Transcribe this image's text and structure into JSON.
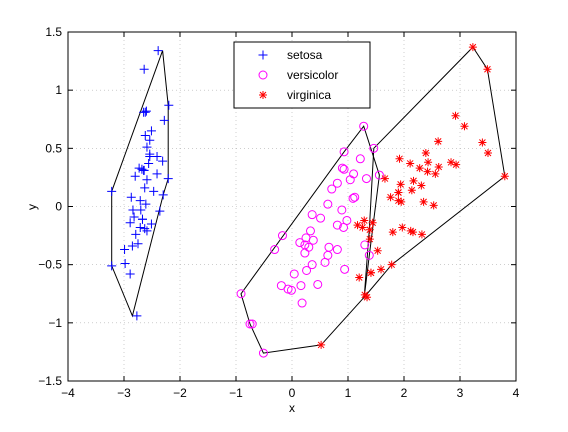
{
  "chart_data": {
    "type": "scatter",
    "title": "",
    "xlabel": "x",
    "ylabel": "y",
    "xlim": [
      -4,
      4
    ],
    "ylim": [
      -1.5,
      1.5
    ],
    "xticks": [
      -4,
      -3,
      -2,
      -1,
      0,
      1,
      2,
      3,
      4
    ],
    "yticks": [
      -1.5,
      -1,
      -0.5,
      0,
      0.5,
      1,
      1.5
    ],
    "xtick_labels": [
      "−4",
      "−3",
      "−2",
      "−1",
      "0",
      "1",
      "2",
      "3",
      "4"
    ],
    "ytick_labels": [
      "−1.5",
      "−1",
      "−0.5",
      "0",
      "0.5",
      "1",
      "1.5"
    ],
    "grid": true,
    "legend_position": "top-center",
    "series": [
      {
        "name": "setosa",
        "marker": "plus",
        "color": "#0000ff",
        "x": [
          -2.68,
          -2.71,
          -2.89,
          -2.75,
          -2.73,
          -2.28,
          -2.82,
          -2.63,
          -2.89,
          -2.67,
          -2.51,
          -2.61,
          -2.79,
          -3.22,
          -2.64,
          -2.39,
          -2.62,
          -2.65,
          -2.2,
          -2.59,
          -2.31,
          -2.54,
          -3.22,
          -2.3,
          -2.36,
          -2.51,
          -2.47,
          -2.56,
          -2.64,
          -2.63,
          -2.59,
          -2.41,
          -2.65,
          -2.6,
          -2.67,
          -2.87,
          -2.62,
          -2.8,
          -2.98,
          -2.59,
          -2.77,
          -2.85,
          -2.99,
          -2.41,
          -2.21,
          -2.71,
          -2.54,
          -2.84,
          -2.54,
          -2.7
        ],
        "y": [
          0.32,
          -0.18,
          -0.14,
          -0.32,
          0.33,
          0.74,
          -0.09,
          0.16,
          -0.58,
          -0.11,
          0.65,
          0.02,
          -0.24,
          -0.51,
          1.18,
          1.34,
          0.81,
          0.31,
          0.87,
          0.51,
          0.39,
          0.43,
          0.13,
          0.1,
          -0.04,
          -0.15,
          0.13,
          0.37,
          0.31,
          -0.19,
          -0.21,
          0.28,
          0.81,
          0.82,
          -0.11,
          0.08,
          0.61,
          0.26,
          -0.49,
          0.23,
          -0.94,
          -0.34,
          -0.37,
          0.43,
          0.24,
          0.05,
          0.57,
          -0.03,
          0.45,
          -0.03
        ]
      },
      {
        "name": "versicolor",
        "marker": "circle",
        "color": "#ff00ff",
        "x": [
          1.28,
          0.93,
          1.46,
          0.18,
          1.09,
          0.64,
          1.1,
          -0.75,
          1.04,
          -0.01,
          -0.51,
          0.51,
          0.26,
          0.98,
          -0.17,
          0.93,
          0.66,
          0.23,
          0.94,
          0.04,
          1.12,
          0.36,
          1.3,
          0.92,
          0.71,
          0.9,
          1.33,
          1.56,
          0.81,
          -0.31,
          -0.07,
          -0.19,
          0.14,
          1.38,
          0.59,
          0.81,
          1.22,
          0.81,
          0.25,
          0.16,
          0.46,
          0.89,
          0.23,
          -0.71,
          0.36,
          0.33,
          0.38,
          0.64,
          -0.91,
          0.3
        ],
        "y": [
          0.69,
          0.32,
          0.5,
          -0.83,
          0.07,
          -0.42,
          0.28,
          -1.01,
          0.23,
          -0.72,
          -1.26,
          -0.1,
          -0.55,
          -0.12,
          -0.25,
          0.47,
          -0.35,
          -0.33,
          -0.54,
          -0.58,
          0.08,
          -0.07,
          -0.33,
          -0.18,
          0.15,
          0.33,
          0.24,
          0.27,
          -0.16,
          -0.37,
          -0.71,
          -0.68,
          -0.31,
          -0.42,
          -0.48,
          0.2,
          0.41,
          -0.37,
          -0.27,
          -0.68,
          -0.67,
          -0.03,
          -0.4,
          -1.01,
          -0.5,
          -0.21,
          -0.29,
          0.02,
          -0.75,
          -0.35
        ]
      },
      {
        "name": "virginica",
        "marker": "star",
        "color": "#ff0000",
        "x": [
          2.53,
          1.41,
          2.62,
          1.97,
          2.35,
          3.4,
          0.52,
          2.93,
          2.32,
          2.92,
          1.66,
          1.8,
          2.17,
          1.34,
          1.59,
          1.9,
          1.95,
          3.49,
          3.8,
          1.3,
          2.43,
          1.2,
          3.5,
          1.39,
          2.28,
          2.61,
          1.26,
          1.29,
          2.12,
          2.39,
          2.84,
          3.23,
          2.16,
          1.44,
          1.78,
          3.08,
          2.14,
          1.9,
          1.17,
          2.11,
          2.31,
          1.92,
          1.41,
          2.56,
          2.42,
          1.94,
          1.53,
          1.76,
          1.9,
          1.39
        ],
        "y": [
          0.01,
          -0.57,
          0.34,
          -0.18,
          0.04,
          0.55,
          -1.19,
          0.36,
          -0.24,
          0.78,
          0.24,
          -0.22,
          0.22,
          -0.78,
          -0.54,
          0.12,
          0.04,
          1.18,
          0.26,
          -0.76,
          0.38,
          -0.61,
          0.46,
          -0.2,
          0.33,
          0.56,
          -0.18,
          -0.12,
          -0.21,
          0.46,
          0.38,
          1.37,
          -0.22,
          -0.14,
          -0.5,
          0.69,
          0.14,
          0.05,
          -0.16,
          0.37,
          0.18,
          0.41,
          -0.57,
          0.28,
          0.3,
          0.19,
          -0.38,
          0.08,
          0.12,
          -0.28
        ]
      }
    ],
    "hulls": [
      {
        "series": "setosa",
        "color": "#000000",
        "points": [
          [
            -2.31,
            1.34
          ],
          [
            -2.21,
            0.87
          ],
          [
            -2.21,
            0.24
          ],
          [
            -2.3,
            0.1
          ],
          [
            -2.85,
            -0.94
          ],
          [
            -3.22,
            -0.51
          ],
          [
            -3.22,
            0.13
          ]
        ]
      },
      {
        "series": "versicolor",
        "color": "#000000",
        "points": [
          [
            1.28,
            0.69
          ],
          [
            1.56,
            0.27
          ],
          [
            1.38,
            -0.42
          ],
          [
            1.29,
            -0.78
          ],
          [
            0.52,
            -1.19
          ],
          [
            -0.51,
            -1.26
          ],
          [
            -0.75,
            -1.01
          ],
          [
            -0.91,
            -0.75
          ],
          [
            0.93,
            0.47
          ]
        ]
      },
      {
        "series": "virginica",
        "color": "#000000",
        "points": [
          [
            3.23,
            1.37
          ],
          [
            3.49,
            1.18
          ],
          [
            3.8,
            0.26
          ],
          [
            1.78,
            -0.5
          ],
          [
            1.29,
            -0.78
          ],
          [
            1.38,
            -0.2
          ],
          [
            1.46,
            0.5
          ]
        ]
      }
    ]
  }
}
